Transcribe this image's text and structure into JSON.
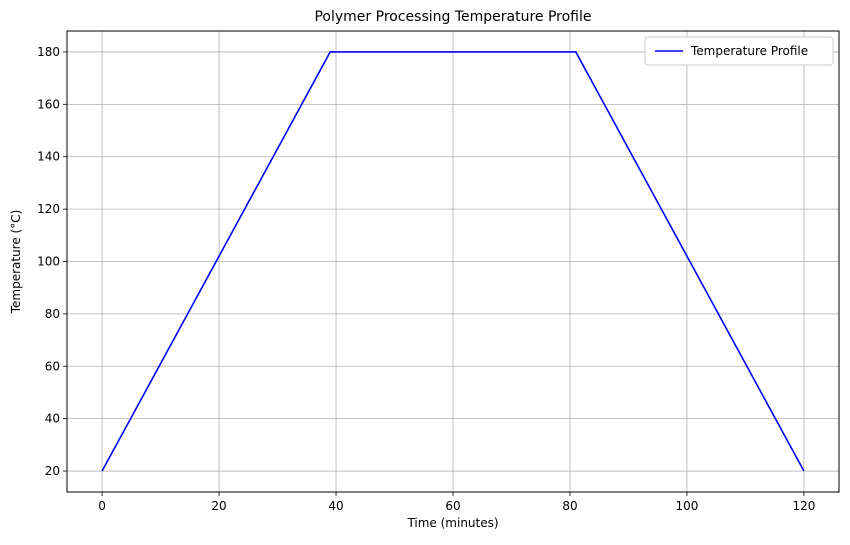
{
  "chart_data": {
    "type": "line",
    "title": "Polymer Processing Temperature Profile",
    "xlabel": "Time (minutes)",
    "ylabel": "Temperature (°C)",
    "xlim": [
      -6,
      126
    ],
    "ylim": [
      12,
      188
    ],
    "xticks": [
      0,
      20,
      40,
      60,
      80,
      100,
      120
    ],
    "yticks": [
      20,
      40,
      60,
      80,
      100,
      120,
      140,
      160,
      180
    ],
    "grid": true,
    "legend_position": "top-right",
    "series": [
      {
        "name": "Temperature Profile",
        "color": "#0000ff",
        "x": [
          0,
          39,
          81,
          120
        ],
        "y": [
          20,
          180,
          180,
          20
        ]
      }
    ]
  }
}
